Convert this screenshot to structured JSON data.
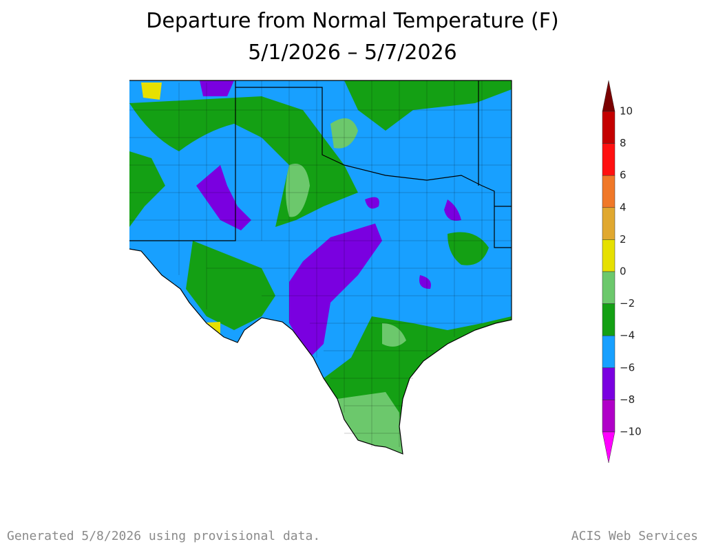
{
  "title": {
    "line1": "Departure from Normal Temperature (F)",
    "line2": "5/1/2026 – 5/7/2026"
  },
  "legend": {
    "labels": [
      "10",
      "8",
      "6",
      "4",
      "2",
      "0",
      "−2",
      "−4",
      "−6",
      "−8",
      "−10"
    ],
    "colors": [
      "#7a0000",
      "#c40000",
      "#ff1010",
      "#f07828",
      "#e0a830",
      "#e6e000",
      "#6cc86c",
      "#14a014",
      "#18a0ff",
      "#7a00e0",
      "#b000c8",
      "#ff00ff"
    ]
  },
  "footer": {
    "left": "Generated 5/8/2026  using provisional data.",
    "right": "ACIS Web Services"
  }
}
